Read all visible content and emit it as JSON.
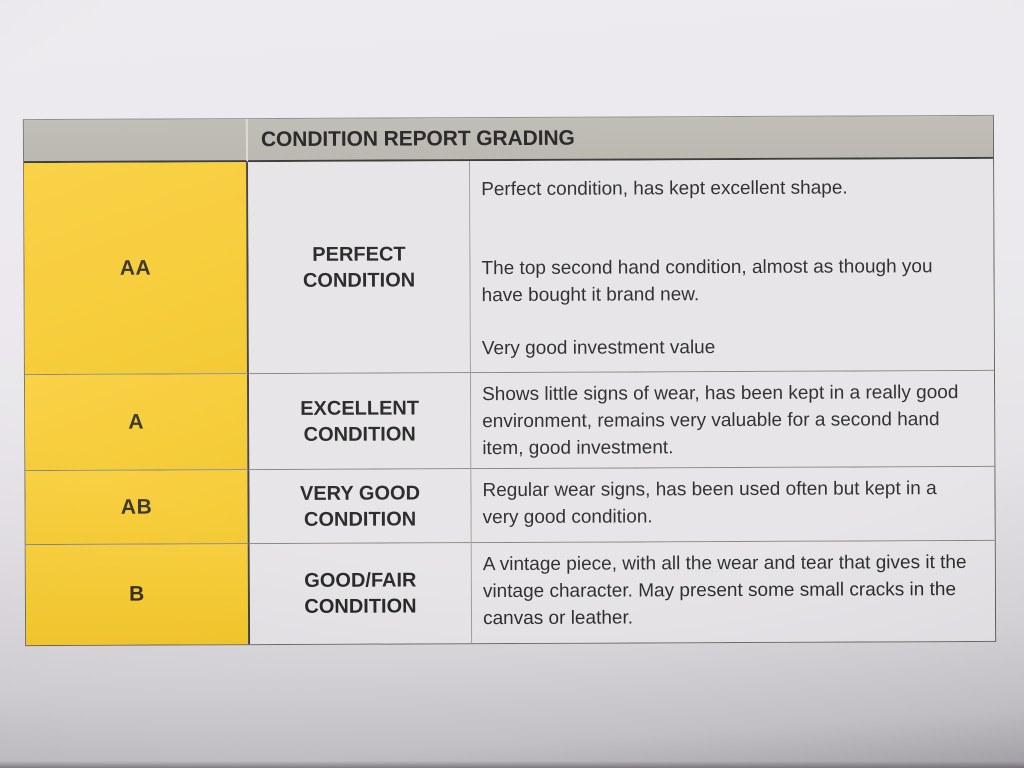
{
  "document": {
    "title": "CONDITION REPORT GRADING",
    "colors": {
      "grade_column_yellow": "#F6C827",
      "header_bar_gray": "#B5B1AA",
      "cell_background": "#E4E2E5",
      "text": "#1B1B1B",
      "paper": "#E9E7EB"
    },
    "rows": [
      {
        "grade": "AA",
        "label": [
          "PERFECT",
          "CONDITION"
        ],
        "desc": [
          "Perfect condition, has kept excellent shape.",
          "The top second hand condition, almost as though you have bought it brand new.",
          "Very good investment value"
        ]
      },
      {
        "grade": "A",
        "label": [
          "EXCELLENT",
          "CONDITION"
        ],
        "desc": [
          "Shows little signs of wear, has been kept in a really good environment, remains very valuable for a second hand item, good investment."
        ]
      },
      {
        "grade": "AB",
        "label": [
          "VERY GOOD",
          "CONDITION"
        ],
        "desc": [
          "Regular wear signs, has been used often but kept in a very good condition."
        ]
      },
      {
        "grade": "B",
        "label": [
          "GOOD/FAIR",
          "CONDITION"
        ],
        "desc": [
          "A vintage piece, with all the wear and tear that gives it the vintage character. May present some small cracks in the canvas or leather."
        ]
      }
    ]
  }
}
